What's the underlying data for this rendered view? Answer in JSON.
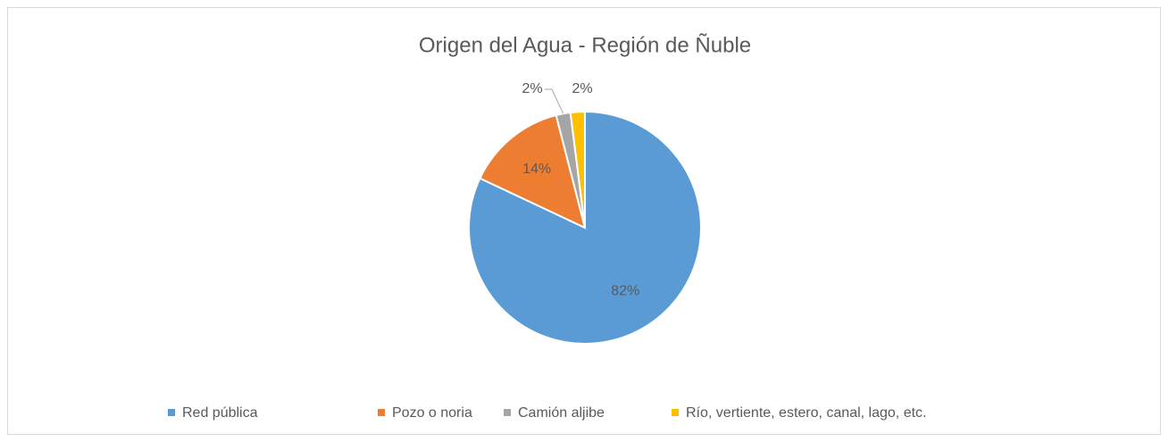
{
  "chart_data": {
    "type": "pie",
    "title": "Origen del Agua - Región de Ñuble",
    "categories": [
      "Red pública",
      "Pozo o noria",
      "Camión aljibe",
      "Río, vertiente, estero, canal, lago, etc."
    ],
    "values": [
      82,
      14,
      2,
      2
    ],
    "value_labels": [
      "82%",
      "14%",
      "2%",
      "2%"
    ],
    "colors": [
      "#5b9bd5",
      "#ed7d31",
      "#a5a5a5",
      "#ffc000"
    ],
    "legend": "bottom"
  }
}
